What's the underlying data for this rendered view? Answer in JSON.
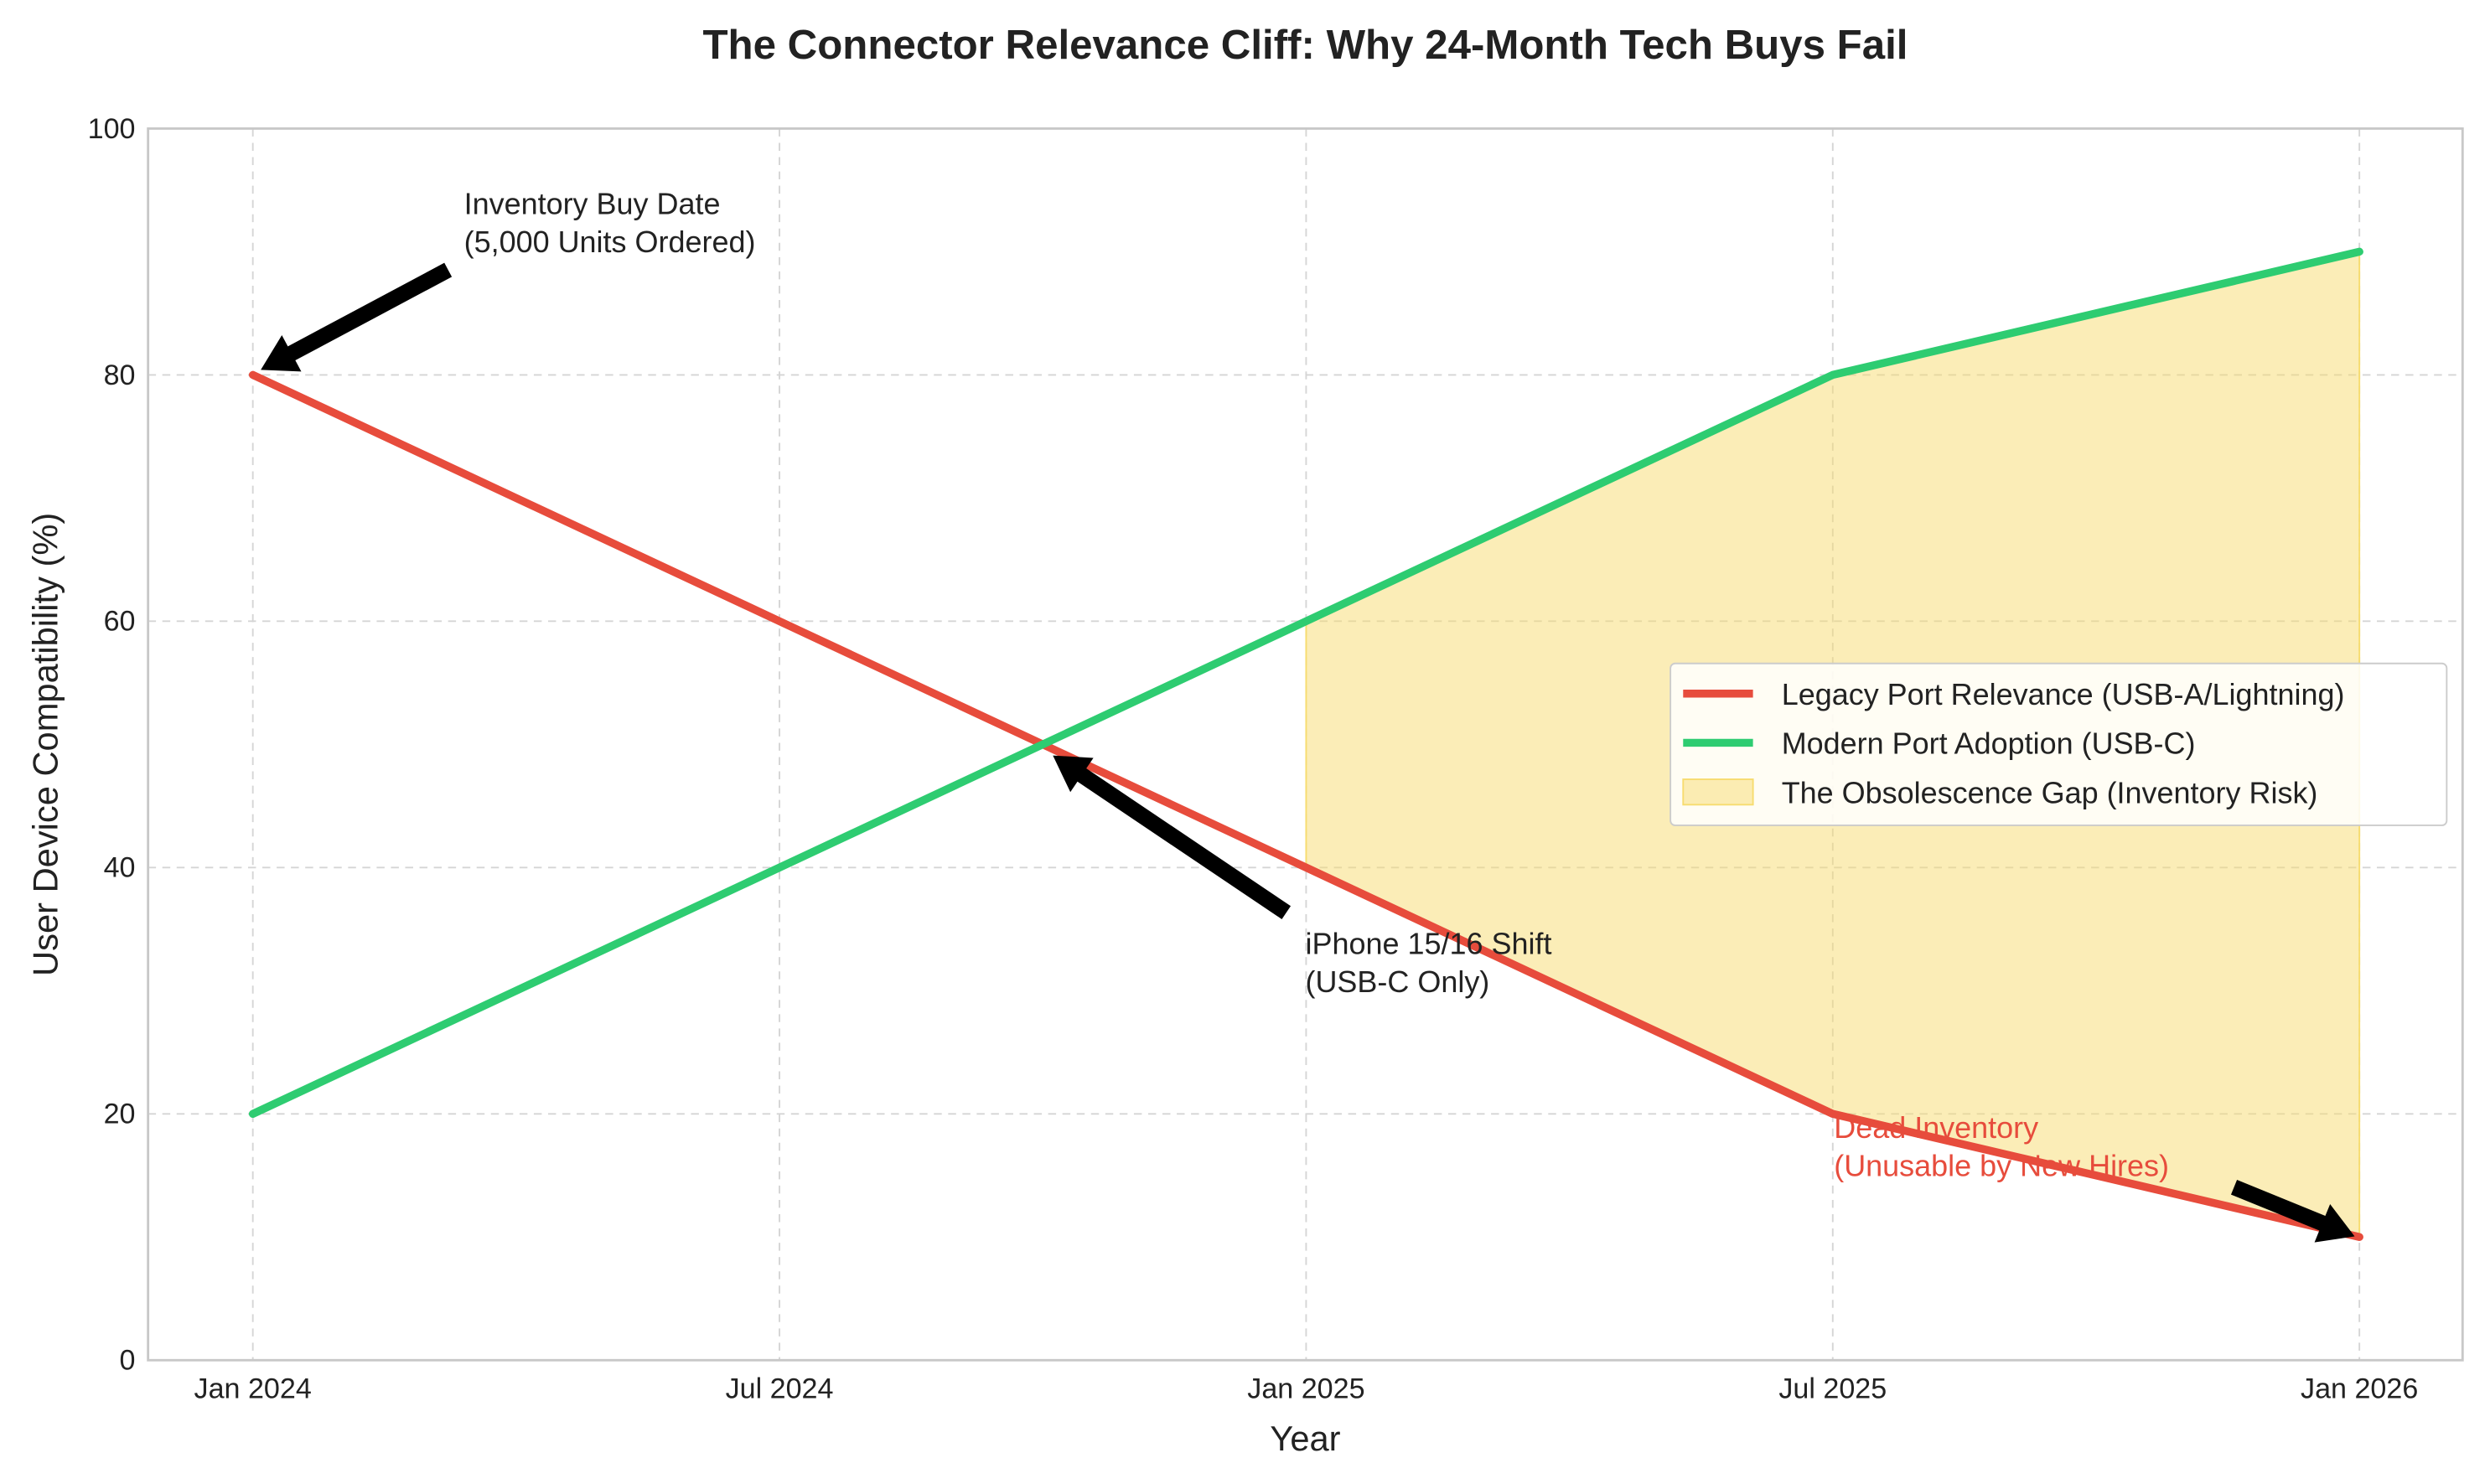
{
  "chart_data": {
    "type": "line",
    "title": "The Connector Relevance Cliff: Why 24-Month Tech Buys Fail",
    "x_label": "Year",
    "y_label": "User Device Compatibility (%)",
    "categories": [
      "Jan 2024",
      "Jul 2024",
      "Jan 2025",
      "Jul 2025",
      "Jan 2026"
    ],
    "series": [
      {
        "name": "Legacy Port Relevance (USB-A/Lightning)",
        "color": "#e74c3c",
        "values": [
          80,
          60,
          40,
          20,
          10
        ]
      },
      {
        "name": "Modern Port Adoption (USB-C)",
        "color": "#2ecc71",
        "values": [
          20,
          40,
          60,
          80,
          90
        ]
      }
    ],
    "fill": {
      "name": "The Obsolescence Gap (Inventory Risk)",
      "color": "#f7dc6f",
      "from": "Jan 2025",
      "to": "Jan 2026"
    },
    "ylim": [
      0,
      100
    ],
    "yticks": [
      0,
      20,
      40,
      60,
      80,
      100
    ],
    "grid": true,
    "legend": "center right",
    "annotations": [
      {
        "lines": [
          "Inventory Buy Date",
          "(5,000 Units Ordered)"
        ]
      },
      {
        "lines": [
          "iPhone 15/16 Shift",
          "(USB-C Only)"
        ]
      },
      {
        "lines": [
          "Dead Inventory",
          "(Unusable by New Hires)"
        ],
        "color": "#e74c3c"
      }
    ]
  }
}
